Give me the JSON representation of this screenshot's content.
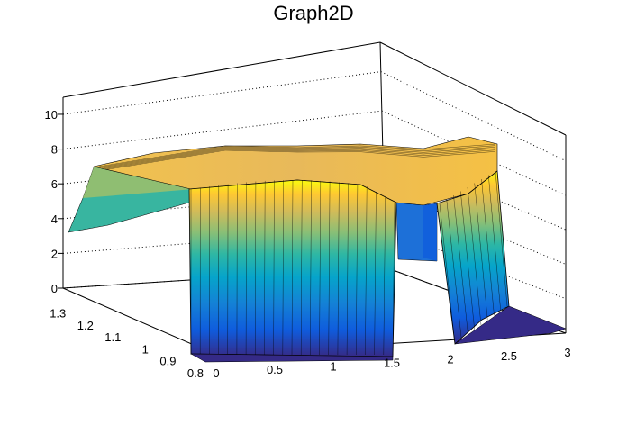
{
  "chart_data": {
    "type": "surface",
    "title": "Graph2D",
    "xlabel": "",
    "ylabel": "",
    "zlabel": "",
    "xlim": [
      0,
      3
    ],
    "ylim": [
      0.8,
      1.35
    ],
    "zlim": [
      0,
      11
    ],
    "x_ticks": [
      "0",
      "0.5",
      "1",
      "1.5",
      "2",
      "2.5",
      "3"
    ],
    "y_ticks": [
      "0.8",
      "0.9",
      "1",
      "1.1",
      "1.2",
      "1.3"
    ],
    "z_ticks": [
      "0",
      "2",
      "4",
      "6",
      "8",
      "10"
    ],
    "grid": true,
    "colormap": [
      "#352a87",
      "#0f5cdd",
      "#1481d6",
      "#06a4ca",
      "#2eb7a4",
      "#87bf77",
      "#d1bb59",
      "#fec832",
      "#f9fb0e"
    ],
    "mesh_color": "#000000",
    "surface_description_values": {
      "x_range_plateau": [
        0.45,
        1.55
      ],
      "x_range_wall": [
        2.0,
        2.55
      ],
      "plateau_height_z": [
        6.8,
        7.8
      ],
      "floor_z": 0
    }
  }
}
